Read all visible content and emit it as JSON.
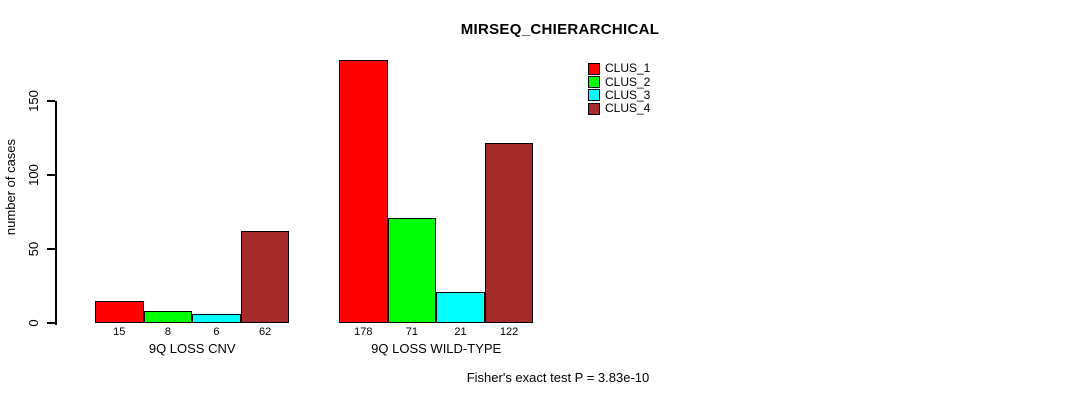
{
  "chart_data": {
    "type": "bar",
    "title": "MIRSEQ_CHIERARCHICAL",
    "ylabel": "number of cases",
    "xlabel": "",
    "categories": [
      "9Q LOSS CNV",
      "9Q LOSS WILD-TYPE"
    ],
    "series": [
      {
        "name": "CLUS_1",
        "color": "#FF0000",
        "values": [
          15,
          178
        ]
      },
      {
        "name": "CLUS_2",
        "color": "#00FF00",
        "values": [
          8,
          71
        ]
      },
      {
        "name": "CLUS_3",
        "color": "#00FFFF",
        "values": [
          6,
          21
        ]
      },
      {
        "name": "CLUS_4",
        "color": "#A52A2A",
        "values": [
          62,
          122
        ]
      }
    ],
    "yticks": [
      0,
      50,
      100,
      150
    ],
    "ylim": [
      0,
      178
    ],
    "grid": false,
    "legend_position": "top-right",
    "bar_value_labels_shown": true,
    "annotation": "Fisher's exact test P = 3.83e-10"
  }
}
